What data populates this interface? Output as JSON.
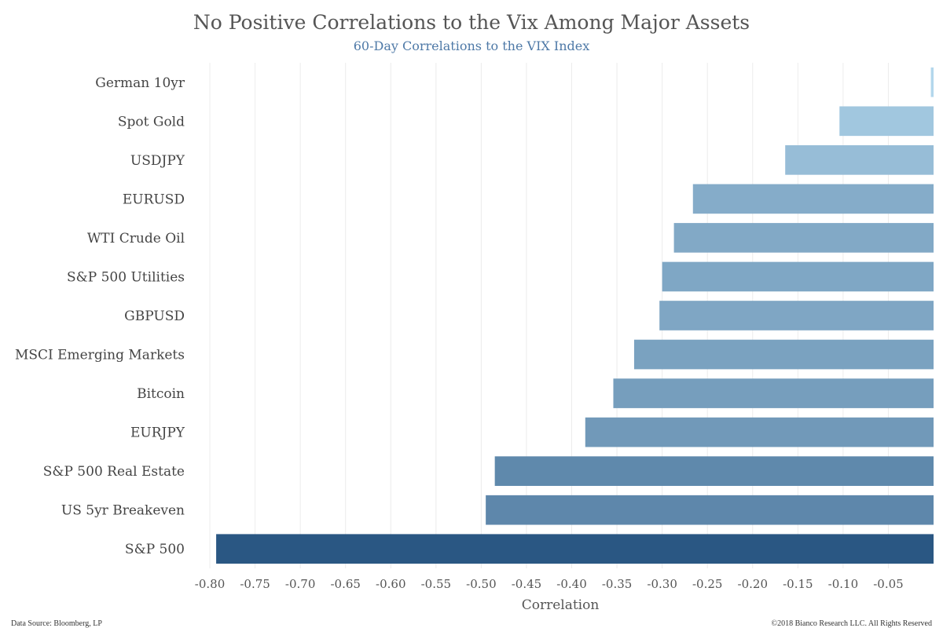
{
  "chart_data": {
    "type": "bar",
    "orientation": "horizontal",
    "title": "No Positive Correlations to the Vix Among Major Assets",
    "subtitle": "60-Day Correlations to the VIX Index",
    "xlabel": "Correlation",
    "xlim": [
      -0.82,
      0.0
    ],
    "xticks": [
      "-0.80",
      "-0.75",
      "-0.70",
      "-0.65",
      "-0.60",
      "-0.55",
      "-0.50",
      "-0.45",
      "-0.40",
      "-0.35",
      "-0.30",
      "-0.25",
      "-0.20",
      "-0.15",
      "-0.10",
      "-0.05"
    ],
    "tick_values": [
      -0.8,
      -0.75,
      -0.7,
      -0.65,
      -0.6,
      -0.55,
      -0.5,
      -0.45,
      -0.4,
      -0.35,
      -0.3,
      -0.25,
      -0.2,
      -0.15,
      -0.1,
      -0.05
    ],
    "grid": "vertical",
    "categories": [
      "German 10yr",
      "Spot Gold",
      "USDJPY",
      "EURUSD",
      "WTI Crude Oil",
      "S&P 500 Utilities",
      "GBPUSD",
      "MSCI Emerging Markets",
      "Bitcoin",
      "EURJPY",
      "S&P 500 Real Estate",
      "US 5yr Breakeven",
      "S&P 500"
    ],
    "values": [
      -0.003,
      -0.104,
      -0.164,
      -0.266,
      -0.287,
      -0.3,
      -0.303,
      -0.331,
      -0.354,
      -0.385,
      -0.485,
      -0.495,
      -0.793
    ],
    "color_scale": [
      "#b3d7ec",
      "#2a5783"
    ]
  },
  "footer": {
    "source": "Data Source: Bloomberg, LP",
    "copyright": "©2018 Bianco Research LLC. All Rights Reserved"
  }
}
